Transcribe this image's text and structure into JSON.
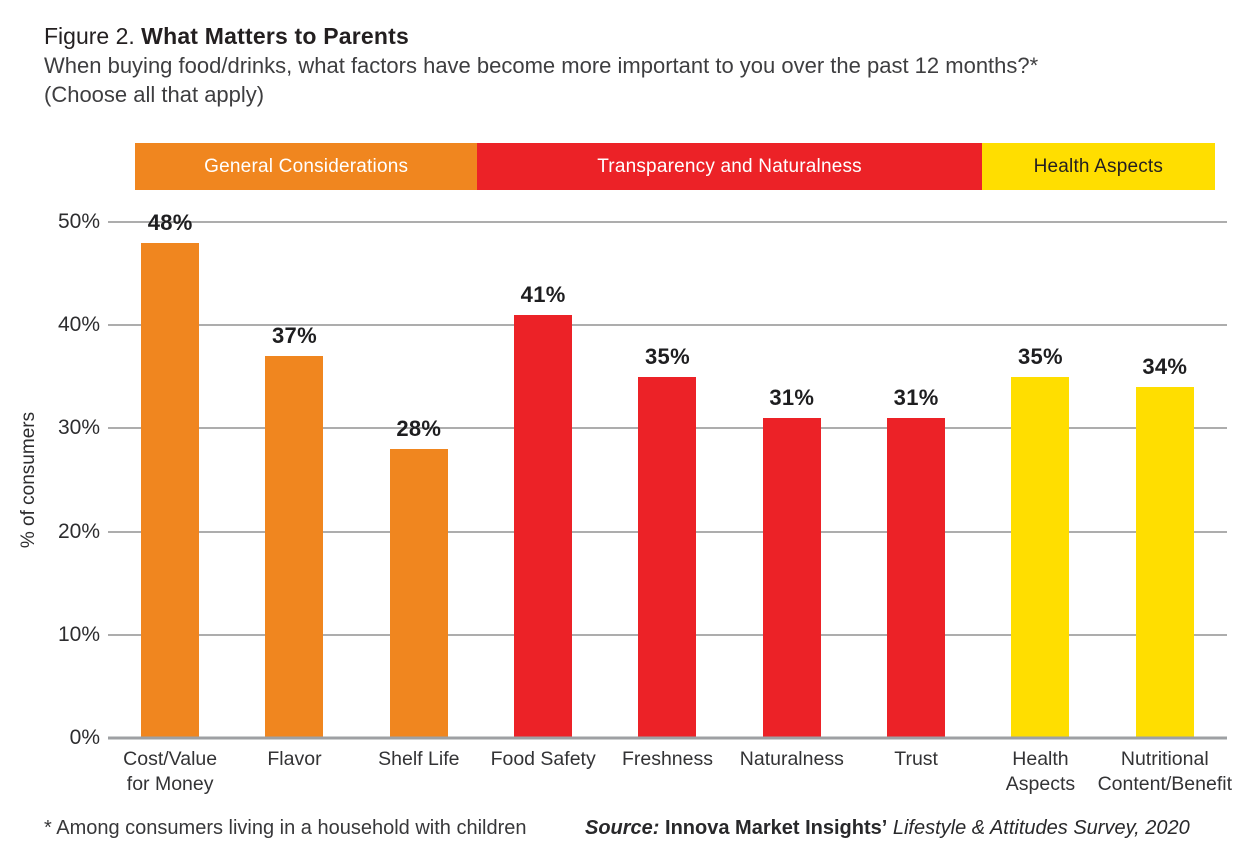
{
  "header": {
    "figure_label": "Figure 2.",
    "title": "What Matters to Parents",
    "subtitle_line1": "When buying food/drinks, what factors have become more important to you over the past 12 months?*",
    "subtitle_line2": "(Choose all that apply)"
  },
  "legend": {
    "segments": [
      {
        "label": "General Considerations",
        "color": "#F0861F",
        "text_color": "#FFFFFF",
        "width_pct": 31.7
      },
      {
        "label": "Transparency and Naturalness",
        "color": "#EC2227",
        "text_color": "#FFFFFF",
        "width_pct": 46.7
      },
      {
        "label": "Health Aspects",
        "color": "#FFDE00",
        "text_color": "#231F20",
        "width_pct": 21.6
      }
    ]
  },
  "chart_data": {
    "type": "bar",
    "title": "What Matters to Parents",
    "xlabel": "",
    "ylabel": "% of consumers",
    "ylim": [
      0,
      50
    ],
    "yticks": [
      0,
      10,
      20,
      30,
      40,
      50
    ],
    "ytick_labels": [
      "0%",
      "10%",
      "20%",
      "30%",
      "40%",
      "50%"
    ],
    "grid": true,
    "legend_position": "top",
    "categories": [
      "Cost/Value for Money",
      "Flavor",
      "Shelf Life",
      "Food Safety",
      "Freshness",
      "Naturalness",
      "Trust",
      "Health Aspects",
      "Nutritional Content/Benefit"
    ],
    "category_lines": [
      [
        "Cost/Value",
        "for Money"
      ],
      [
        "Flavor"
      ],
      [
        "Shelf Life"
      ],
      [
        "Food Safety"
      ],
      [
        "Freshness"
      ],
      [
        "Naturalness"
      ],
      [
        "Trust"
      ],
      [
        "Health",
        "Aspects"
      ],
      [
        "Nutritional",
        "Content/Benefit"
      ]
    ],
    "values": [
      48,
      37,
      28,
      41,
      35,
      31,
      31,
      35,
      34
    ],
    "data_labels": [
      "48%",
      "37%",
      "28%",
      "41%",
      "35%",
      "31%",
      "31%",
      "35%",
      "34%"
    ],
    "groups": [
      "general",
      "general",
      "general",
      "transparency",
      "transparency",
      "transparency",
      "transparency",
      "health",
      "health"
    ],
    "group_labels": {
      "general": "General Considerations",
      "transparency": "Transparency and Naturalness",
      "health": "Health Aspects"
    },
    "group_colors": {
      "general": "#F0861F",
      "transparency": "#EC2227",
      "health": "#FFDE00"
    }
  },
  "footer": {
    "footnote": "* Among consumers living in a household with children",
    "source_prefix": "Source:",
    "source_name": "Innova Market Insights’",
    "source_title": "Lifestyle & Attitudes Survey, 2020"
  },
  "colors": {
    "text_dark": "#231F20",
    "gridline": "#ADADAD",
    "axis": "#9EA0A3"
  }
}
